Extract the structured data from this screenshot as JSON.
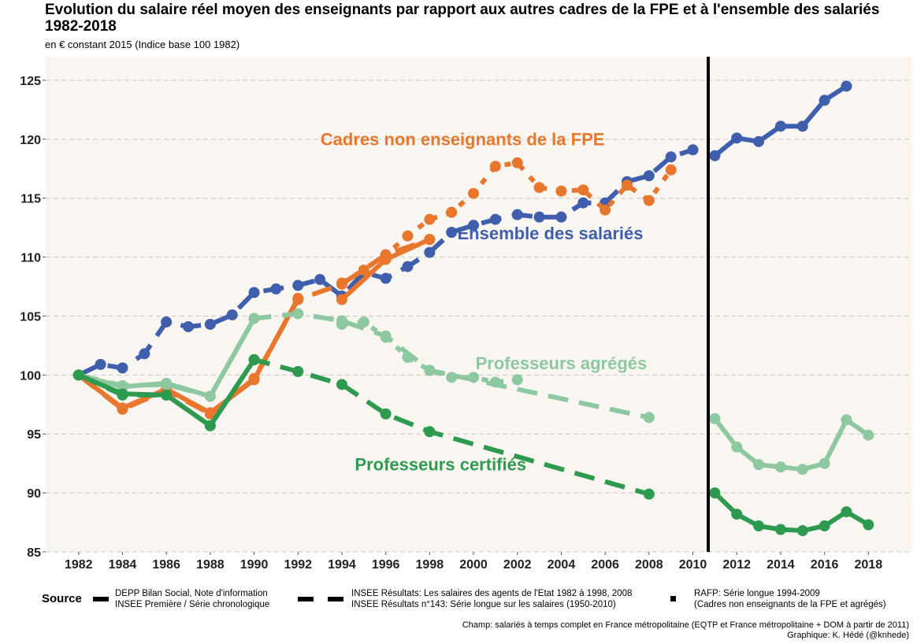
{
  "title": "Evolution du salaire réel moyen des enseignants par rapport aux autres cadres de la FPE et à l'ensemble des salariés 1982-2018",
  "subtitle": "en € constant 2015 (Indice base 100 1982)",
  "legend": {
    "title": "Source",
    "items": [
      {
        "style": "solid",
        "line1": "DEPP Bilan Social, Note d'information",
        "line2": "INSEE Première / Série chronologique"
      },
      {
        "style": "dashed",
        "line1": "INSEE Résultats: Les salaires des agents de l'Etat 1982 à 1998, 2008",
        "line2": "INSEE Résultats n°143: Série longue sur les salaires (1950-2010)"
      },
      {
        "style": "dotted",
        "line1": "RAFP: Série longue 1994-2009",
        "line2": "(Cadres non enseignants de la FPE et agrégés)"
      }
    ]
  },
  "caption": {
    "line1": "Champ: salariés à temps complet en France métropolitaine (EQTP et France métropolitaine + DOM à partir de 2011)",
    "line2": "Graphique: K. Hédé (@knhede)"
  },
  "chart_data": {
    "type": "line",
    "xlim": [
      1980.5,
      2020
    ],
    "ylim": [
      85,
      127
    ],
    "x_ticks": [
      1982,
      1984,
      1986,
      1988,
      1990,
      1992,
      1994,
      1996,
      1998,
      2000,
      2002,
      2004,
      2006,
      2008,
      2010,
      2012,
      2014,
      2016,
      2018
    ],
    "y_ticks": [
      85,
      90,
      95,
      100,
      105,
      110,
      115,
      120,
      125
    ],
    "grid": "horizontal dashed",
    "vline_x": 2010.7,
    "background": "#f9f6f1",
    "colors": {
      "cadres": "#e8762c",
      "ensemble": "#3f5fad",
      "agreges": "#8dc8a0",
      "certifies": "#2e9a4f"
    },
    "labels": [
      {
        "text": "Cadres non enseignants de la FPE",
        "series": "cadres",
        "x": 1999.5,
        "y": 119.5
      },
      {
        "text": "Ensemble des salariés",
        "series": "ensemble",
        "x": 2003.5,
        "y": 111.5
      },
      {
        "text": "Professeurs agrégés",
        "series": "agreges",
        "x": 2004,
        "y": 100.5
      },
      {
        "text": "Professeurs certifiés",
        "series": "certifies",
        "x": 1998.5,
        "y": 91.9
      }
    ],
    "series": [
      {
        "key": "ensemble",
        "style": "dashed",
        "x": [
          1982,
          1983,
          1984,
          1985,
          1986,
          1987,
          1988,
          1989,
          1990,
          1991,
          1992,
          1993,
          1994,
          1995,
          1996,
          1997,
          1998,
          1999,
          2000,
          2001,
          2002,
          2003,
          2004,
          2005,
          2006,
          2007,
          2008,
          2009,
          2010
        ],
        "y": [
          100.0,
          100.9,
          100.6,
          101.8,
          104.5,
          104.1,
          104.3,
          105.1,
          107.0,
          107.3,
          107.6,
          108.1,
          106.7,
          108.7,
          108.2,
          109.2,
          110.4,
          112.1,
          112.7,
          113.2,
          113.6,
          113.4,
          113.4,
          114.6,
          114.6,
          116.4,
          116.9,
          118.5,
          119.1
        ]
      },
      {
        "key": "ensemble",
        "style": "solid",
        "x": [
          2011,
          2012,
          2013,
          2014,
          2015,
          2016,
          2017
        ],
        "y": [
          118.6,
          120.1,
          119.8,
          121.1,
          121.1,
          123.3,
          124.5
        ]
      },
      {
        "key": "cadres",
        "style": "solid",
        "x": [
          1982,
          1984,
          1986,
          1988,
          1990,
          1992
        ],
        "y": [
          100.0,
          97.2,
          98.8,
          96.8,
          99.6,
          106.5
        ]
      },
      {
        "key": "cadres",
        "style": "solid",
        "x": [
          1994,
          1996,
          1998
        ],
        "y": [
          106.4,
          109.8,
          111.5
        ]
      },
      {
        "key": "cadres",
        "style": "dashed",
        "x": [
          1982,
          1984,
          1986,
          1988,
          1990,
          1992,
          1994,
          1996,
          1998
        ],
        "y": [
          100.0,
          97.1,
          98.7,
          96.7,
          99.7,
          106.4,
          107.7,
          110.2,
          111.5
        ]
      },
      {
        "key": "cadres",
        "style": "dotted",
        "x": [
          1994,
          1995,
          1996,
          1997,
          1998,
          1999,
          2000,
          2001,
          2002,
          2003,
          2004,
          2005,
          2006,
          2007,
          2008,
          2009
        ],
        "y": [
          107.8,
          108.9,
          110.2,
          111.8,
          113.2,
          113.8,
          115.4,
          117.7,
          118.0,
          115.9,
          115.6,
          115.7,
          114.0,
          116.1,
          114.8,
          117.4
        ]
      },
      {
        "key": "agreges",
        "style": "solid",
        "x": [
          1982,
          1984,
          1986,
          1988,
          1990
        ],
        "y": [
          100.0,
          99.0,
          99.3,
          98.2,
          104.8
        ]
      },
      {
        "key": "agreges",
        "style": "dashed",
        "x": [
          1982,
          1984,
          1986,
          1988,
          1990,
          1992,
          1994,
          1996,
          1998,
          2008
        ],
        "y": [
          100.0,
          99.1,
          99.2,
          98.2,
          104.8,
          105.2,
          104.6,
          103.3,
          100.4,
          96.4
        ]
      },
      {
        "key": "agreges",
        "style": "dotted",
        "x": [
          1994,
          1995,
          1996,
          1997,
          1998,
          1999,
          2000,
          2001,
          2002
        ],
        "y": [
          104.3,
          104.5,
          103.2,
          101.5,
          100.4,
          99.8,
          99.8,
          99.4,
          99.6
        ]
      },
      {
        "key": "agreges",
        "style": "solid",
        "x": [
          2011,
          2012,
          2013,
          2014,
          2015,
          2016,
          2017,
          2018
        ],
        "y": [
          96.3,
          93.9,
          92.4,
          92.2,
          92.0,
          92.5,
          96.2,
          94.9
        ]
      },
      {
        "key": "certifies",
        "style": "solid",
        "x": [
          1982,
          1984,
          1986,
          1988,
          1990
        ],
        "y": [
          100.0,
          98.4,
          98.3,
          95.7,
          101.3
        ]
      },
      {
        "key": "certifies",
        "style": "dashed",
        "x": [
          1982,
          1984,
          1986,
          1988,
          1990,
          1992,
          1994,
          1996,
          1998,
          2008
        ],
        "y": [
          100.0,
          98.3,
          98.3,
          95.7,
          101.3,
          100.3,
          99.2,
          96.7,
          95.2,
          89.9
        ]
      },
      {
        "key": "certifies",
        "style": "solid",
        "x": [
          2011,
          2012,
          2013,
          2014,
          2015,
          2016,
          2017,
          2018
        ],
        "y": [
          90.0,
          88.2,
          87.2,
          86.9,
          86.8,
          87.2,
          88.4,
          87.3
        ]
      }
    ]
  }
}
